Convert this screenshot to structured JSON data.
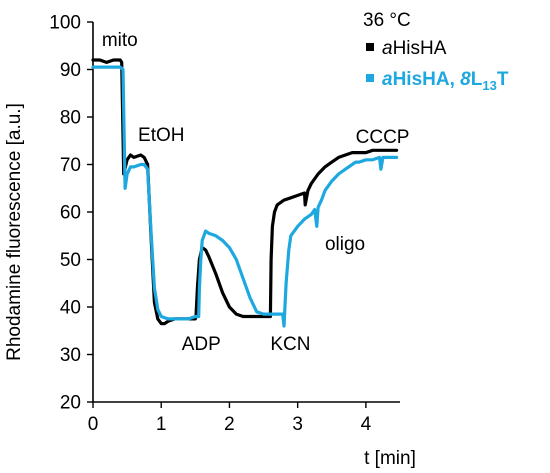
{
  "chart_data": {
    "type": "line",
    "title": "",
    "xlabel": "t [min]",
    "ylabel": "Rhodamine fluorescence [a.u.]",
    "xlim": [
      0,
      4.5
    ],
    "ylim": [
      20,
      100
    ],
    "xticks": [
      0,
      1,
      2,
      3,
      4
    ],
    "yticks": [
      20,
      30,
      40,
      50,
      60,
      70,
      80,
      90,
      100
    ],
    "grid": false,
    "legend": {
      "title": "36 °C",
      "placement": "top-right"
    },
    "series": [
      {
        "name": "aHisHA",
        "color": "#000000",
        "x": [
          0.0,
          0.1,
          0.2,
          0.3,
          0.4,
          0.42,
          0.45,
          0.5,
          0.55,
          0.6,
          0.7,
          0.75,
          0.8,
          0.85,
          0.9,
          0.95,
          1.0,
          1.05,
          1.1,
          1.2,
          1.3,
          1.4,
          1.5,
          1.51,
          1.53,
          1.56,
          1.6,
          1.65,
          1.7,
          1.8,
          1.9,
          2.0,
          2.1,
          2.2,
          2.3,
          2.4,
          2.5,
          2.6,
          2.61,
          2.63,
          2.66,
          2.7,
          2.75,
          2.8,
          2.9,
          3.0,
          3.1,
          3.11,
          3.15,
          3.2,
          3.3,
          3.4,
          3.5,
          3.6,
          3.7,
          3.8,
          3.9,
          4.0,
          4.1,
          4.2,
          4.3,
          4.45
        ],
        "y": [
          92,
          92,
          91.5,
          92,
          92,
          91.5,
          68,
          71,
          72,
          71.5,
          72,
          71.5,
          70,
          55,
          41,
          37.5,
          36.5,
          36.5,
          37,
          37.5,
          37.5,
          37.5,
          37.5,
          38,
          44,
          50,
          52.5,
          52,
          50.5,
          47,
          43,
          40,
          38.5,
          38,
          38,
          38,
          38,
          38,
          50,
          57,
          60,
          61.5,
          62,
          62.5,
          63,
          63.5,
          64,
          61.5,
          64.5,
          66,
          68,
          69.5,
          70.5,
          71.5,
          72,
          72.5,
          72.5,
          72.5,
          73,
          73,
          73,
          73
        ]
      },
      {
        "name": "aHisHA, 8L13T",
        "color": "#1ea8e0",
        "x": [
          0.0,
          0.1,
          0.2,
          0.3,
          0.4,
          0.44,
          0.47,
          0.5,
          0.55,
          0.6,
          0.7,
          0.75,
          0.8,
          0.85,
          0.9,
          0.95,
          1.0,
          1.1,
          1.2,
          1.3,
          1.4,
          1.5,
          1.55,
          1.56,
          1.58,
          1.6,
          1.65,
          1.7,
          1.8,
          1.9,
          2.0,
          2.1,
          2.2,
          2.3,
          2.4,
          2.5,
          2.6,
          2.7,
          2.75,
          2.78,
          2.8,
          2.83,
          2.87,
          2.9,
          3.0,
          3.1,
          3.2,
          3.25,
          3.28,
          3.3,
          3.35,
          3.4,
          3.5,
          3.6,
          3.7,
          3.8,
          3.85,
          3.9,
          4.0,
          4.1,
          4.2,
          4.22,
          4.25,
          4.3,
          4.45
        ],
        "y": [
          90.5,
          90.5,
          90.5,
          90.5,
          90.5,
          90,
          65,
          68,
          69.5,
          69.5,
          70,
          70,
          69,
          56,
          44,
          39.5,
          38,
          37.5,
          37.5,
          37.5,
          37.5,
          38,
          38,
          44,
          50,
          54,
          56,
          55.5,
          55,
          54,
          52.5,
          50,
          46,
          42,
          39,
          38.5,
          38.5,
          38.5,
          38.5,
          38.5,
          36,
          45,
          52,
          55,
          57,
          58.5,
          59.5,
          60.5,
          57,
          61,
          62.5,
          64.5,
          66.5,
          68,
          69,
          70,
          70.5,
          70.5,
          71,
          71,
          71.5,
          69,
          71.5,
          71.5,
          71.5
        ]
      }
    ],
    "annotations": [
      {
        "text": "mito",
        "x": 0.13,
        "y": 95
      },
      {
        "text": "EtOH",
        "x": 0.66,
        "y": 75
      },
      {
        "text": "ADP",
        "x": 1.3,
        "y": 31
      },
      {
        "text": "KCN",
        "x": 2.6,
        "y": 31
      },
      {
        "text": "oligo",
        "x": 3.4,
        "y": 52
      },
      {
        "text": "CCCP",
        "x": 3.85,
        "y": 74.5
      }
    ]
  }
}
